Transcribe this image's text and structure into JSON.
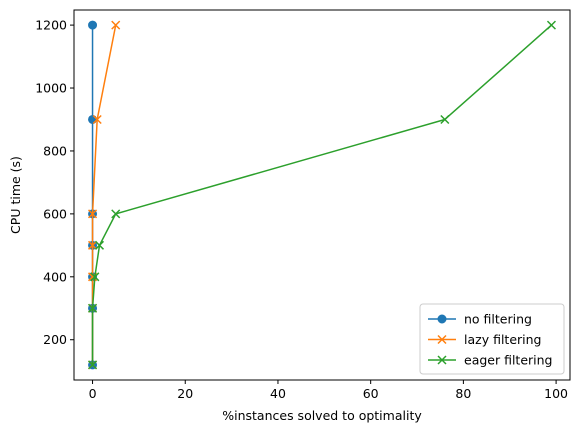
{
  "chart_data": {
    "type": "line",
    "xlabel": "%instances solved to optimality",
    "ylabel": "CPU time (s)",
    "xlim": [
      -4,
      103
    ],
    "ylim": [
      72,
      1248
    ],
    "x_ticks": [
      0,
      20,
      40,
      60,
      80,
      100
    ],
    "y_ticks": [
      200,
      400,
      600,
      800,
      1000,
      1200
    ],
    "legend_position": "lower-right",
    "series": [
      {
        "name": "no filtering",
        "color": "#1f77b4",
        "marker": "circle",
        "points": [
          {
            "x": 0,
            "y": 120
          },
          {
            "x": 0,
            "y": 300
          },
          {
            "x": 0,
            "y": 400
          },
          {
            "x": 0,
            "y": 500
          },
          {
            "x": 0,
            "y": 600
          },
          {
            "x": 0,
            "y": 900
          },
          {
            "x": 0,
            "y": 1200
          }
        ]
      },
      {
        "name": "lazy filtering",
        "color": "#ff7f0e",
        "marker": "x",
        "points": [
          {
            "x": 0,
            "y": 120
          },
          {
            "x": 0,
            "y": 300
          },
          {
            "x": 0,
            "y": 400
          },
          {
            "x": 0,
            "y": 500
          },
          {
            "x": 0,
            "y": 600
          },
          {
            "x": 1,
            "y": 900
          },
          {
            "x": 5,
            "y": 1200
          }
        ]
      },
      {
        "name": "eager filtering",
        "color": "#2ca02c",
        "marker": "x",
        "points": [
          {
            "x": 0,
            "y": 120
          },
          {
            "x": 0,
            "y": 300
          },
          {
            "x": 0.5,
            "y": 400
          },
          {
            "x": 1.5,
            "y": 500
          },
          {
            "x": 5,
            "y": 600
          },
          {
            "x": 76,
            "y": 900
          },
          {
            "x": 99,
            "y": 1200
          }
        ]
      }
    ]
  }
}
